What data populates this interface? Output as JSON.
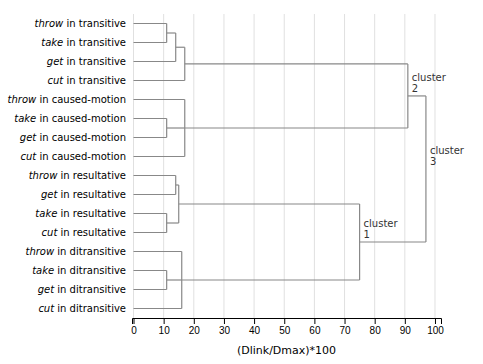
{
  "chart_data": {
    "type": "dendrogram",
    "xlabel": "(Dlink/Dmax)*100",
    "categories": [
      [
        "throw",
        " in transitive"
      ],
      [
        "take",
        " in transitive"
      ],
      [
        "get",
        " in transitive"
      ],
      [
        "cut",
        " in transitive"
      ],
      [
        "throw",
        " in caused-motion"
      ],
      [
        "take",
        " in caused-motion"
      ],
      [
        "get",
        " in caused-motion"
      ],
      [
        "cut",
        " in caused-motion"
      ],
      [
        "throw",
        " in resultative"
      ],
      [
        "get",
        " in resultative"
      ],
      [
        "take",
        " in resultative"
      ],
      [
        "cut",
        " in resultative"
      ],
      [
        "throw",
        " in ditransitive"
      ],
      [
        "take",
        " in ditransitive"
      ],
      [
        "get",
        " in ditransitive"
      ],
      [
        "cut",
        " in ditransitive"
      ]
    ],
    "merges": [
      {
        "children": [
          {
            "leaf": 0
          },
          {
            "leaf": 1
          }
        ],
        "height": 11
      },
      {
        "children": [
          {
            "merge": 0
          },
          {
            "leaf": 2
          }
        ],
        "height": 14
      },
      {
        "children": [
          {
            "merge": 1
          },
          {
            "leaf": 3
          }
        ],
        "height": 17
      },
      {
        "children": [
          {
            "leaf": 5
          },
          {
            "leaf": 6
          }
        ],
        "height": 11
      },
      {
        "children": [
          {
            "leaf": 4
          },
          {
            "merge": 3
          },
          {
            "leaf": 7
          }
        ],
        "height": 17
      },
      {
        "children": [
          {
            "merge": 2
          },
          {
            "merge": 4
          }
        ],
        "height": 91,
        "label": "cluster\n2"
      },
      {
        "children": [
          {
            "leaf": 8
          },
          {
            "leaf": 9
          }
        ],
        "height": 14
      },
      {
        "children": [
          {
            "leaf": 10
          },
          {
            "leaf": 11
          }
        ],
        "height": 11
      },
      {
        "children": [
          {
            "merge": 6
          },
          {
            "merge": 7
          }
        ],
        "height": 15
      },
      {
        "children": [
          {
            "leaf": 13
          },
          {
            "leaf": 14
          }
        ],
        "height": 11
      },
      {
        "children": [
          {
            "leaf": 12
          },
          {
            "merge": 9
          },
          {
            "leaf": 15
          }
        ],
        "height": 16
      },
      {
        "children": [
          {
            "merge": 8
          },
          {
            "merge": 10
          }
        ],
        "height": 75,
        "label": "cluster\n1"
      },
      {
        "children": [
          {
            "merge": 5
          },
          {
            "merge": 11
          }
        ],
        "height": 97,
        "label": "cluster\n3"
      }
    ],
    "color": "#888888",
    "xlim": [
      -0.5,
      102
    ],
    "xticks": [
      0,
      10,
      20,
      30,
      40,
      50,
      60,
      70,
      80,
      90,
      100
    ],
    "grid": true
  }
}
